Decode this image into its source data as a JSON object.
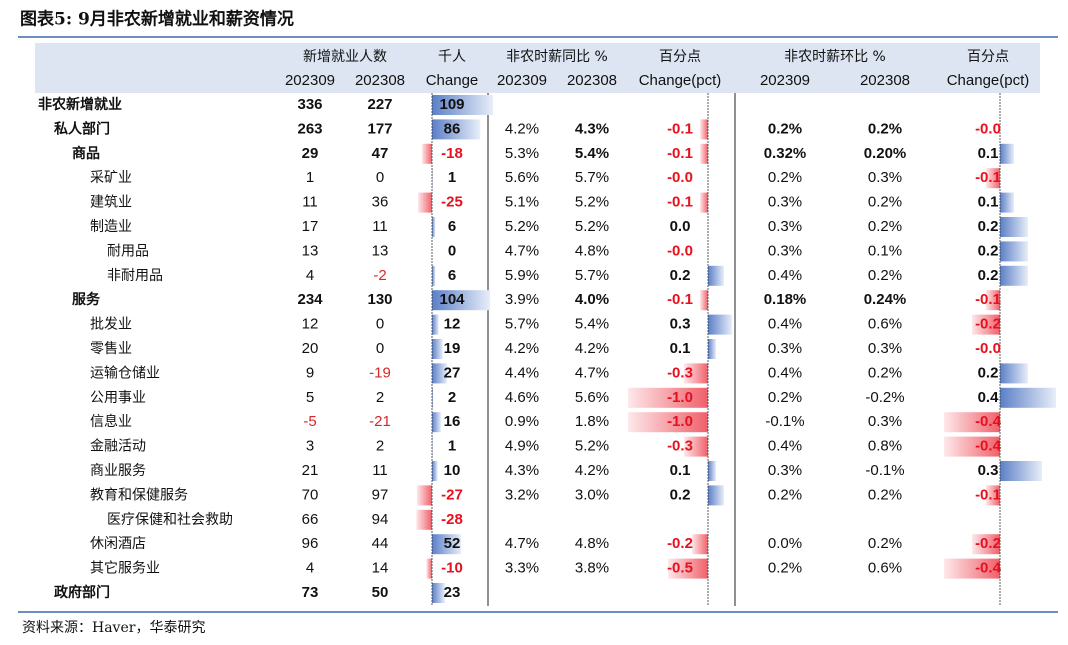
{
  "title": "图表5:  9月非农新增就业和薪资情况",
  "header": {
    "group_labels": [
      "新增就业人数",
      "千人",
      "非农时薪同比 %",
      "百分点",
      "非农时薪环比 %",
      "百分点"
    ],
    "sub_labels": [
      "202309",
      "202308",
      "Change",
      "202309",
      "202308",
      "Change(pct)",
      "202309",
      "202308",
      "Change(pct)"
    ]
  },
  "table": {
    "rows": [
      {
        "label": "非农新增就业",
        "level": 0,
        "bold": true,
        "cells": [
          "336",
          "227",
          "109",
          null,
          null,
          null,
          null,
          null,
          null
        ]
      },
      {
        "label": "私人部门",
        "level": 1,
        "bold": true,
        "cells": [
          "263",
          "177",
          "86",
          "4.2%",
          "4.3%",
          "-0.1",
          "0.2%",
          "0.2%",
          "-0.0"
        ]
      },
      {
        "label": "商品",
        "level": 2,
        "bold": true,
        "cells": [
          "29",
          "47",
          "-18",
          "5.3%",
          "5.4%",
          "-0.1",
          "0.32%",
          "0.20%",
          "0.1"
        ]
      },
      {
        "label": "采矿业",
        "level": 3,
        "bold": false,
        "cells": [
          "1",
          "0",
          "1",
          "5.6%",
          "5.7%",
          "-0.0",
          "0.2%",
          "0.3%",
          "-0.1"
        ]
      },
      {
        "label": "建筑业",
        "level": 3,
        "bold": false,
        "cells": [
          "11",
          "36",
          "-25",
          "5.1%",
          "5.2%",
          "-0.1",
          "0.3%",
          "0.2%",
          "0.1"
        ]
      },
      {
        "label": "制造业",
        "level": 3,
        "bold": false,
        "cells": [
          "17",
          "11",
          "6",
          "5.2%",
          "5.2%",
          "0.0",
          "0.3%",
          "0.2%",
          "0.2"
        ]
      },
      {
        "label": "耐用品",
        "level": 4,
        "bold": false,
        "cells": [
          "13",
          "13",
          "0",
          "4.7%",
          "4.8%",
          "-0.0",
          "0.3%",
          "0.1%",
          "0.2"
        ]
      },
      {
        "label": "非耐用品",
        "level": 4,
        "bold": false,
        "cells": [
          "4",
          "-2",
          "6",
          "5.9%",
          "5.7%",
          "0.2",
          "0.4%",
          "0.2%",
          "0.2"
        ]
      },
      {
        "label": "服务",
        "level": 2,
        "bold": true,
        "cells": [
          "234",
          "130",
          "104",
          "3.9%",
          "4.0%",
          "-0.1",
          "0.18%",
          "0.24%",
          "-0.1"
        ]
      },
      {
        "label": "批发业",
        "level": 3,
        "bold": false,
        "cells": [
          "12",
          "0",
          "12",
          "5.7%",
          "5.4%",
          "0.3",
          "0.4%",
          "0.6%",
          "-0.2"
        ]
      },
      {
        "label": "零售业",
        "level": 3,
        "bold": false,
        "cells": [
          "20",
          "0",
          "19",
          "4.2%",
          "4.2%",
          "0.1",
          "0.3%",
          "0.3%",
          "-0.0"
        ]
      },
      {
        "label": "运输仓储业",
        "level": 3,
        "bold": false,
        "cells": [
          "9",
          "-19",
          "27",
          "4.4%",
          "4.7%",
          "-0.3",
          "0.4%",
          "0.2%",
          "0.2"
        ]
      },
      {
        "label": "公用事业",
        "level": 3,
        "bold": false,
        "cells": [
          "5",
          "2",
          "2",
          "4.6%",
          "5.6%",
          "-1.0",
          "0.2%",
          "-0.2%",
          "0.4"
        ]
      },
      {
        "label": "信息业",
        "level": 3,
        "bold": false,
        "cells": [
          "-5",
          "-21",
          "16",
          "0.9%",
          "1.8%",
          "-1.0",
          "-0.1%",
          "0.3%",
          "-0.4"
        ]
      },
      {
        "label": "金融活动",
        "level": 3,
        "bold": false,
        "cells": [
          "3",
          "2",
          "1",
          "4.9%",
          "5.2%",
          "-0.3",
          "0.4%",
          "0.8%",
          "-0.4"
        ]
      },
      {
        "label": "商业服务",
        "level": 3,
        "bold": false,
        "cells": [
          "21",
          "11",
          "10",
          "4.3%",
          "4.2%",
          "0.1",
          "0.3%",
          "-0.1%",
          "0.3"
        ]
      },
      {
        "label": "教育和保健服务",
        "level": 3,
        "bold": false,
        "cells": [
          "70",
          "97",
          "-27",
          "3.2%",
          "3.0%",
          "0.2",
          "0.2%",
          "0.2%",
          "-0.1"
        ]
      },
      {
        "label": "医疗保健和社会救助",
        "level": 4,
        "bold": false,
        "cells": [
          "66",
          "94",
          "-28",
          null,
          null,
          null,
          null,
          null,
          null
        ]
      },
      {
        "label": "休闲酒店",
        "level": 3,
        "bold": false,
        "cells": [
          "96",
          "44",
          "52",
          "4.7%",
          "4.8%",
          "-0.2",
          "0.0%",
          "0.2%",
          "-0.2"
        ]
      },
      {
        "label": "其它服务业",
        "level": 3,
        "bold": false,
        "cells": [
          "4",
          "14",
          "-10",
          "3.3%",
          "3.8%",
          "-0.5",
          "0.2%",
          "0.6%",
          "-0.4"
        ]
      },
      {
        "label": "政府部门",
        "level": 1,
        "bold": true,
        "cells": [
          "73",
          "50",
          "23",
          null,
          null,
          null,
          null,
          null,
          null
        ]
      }
    ]
  },
  "source": "资料来源：Haver，华泰研究"
}
